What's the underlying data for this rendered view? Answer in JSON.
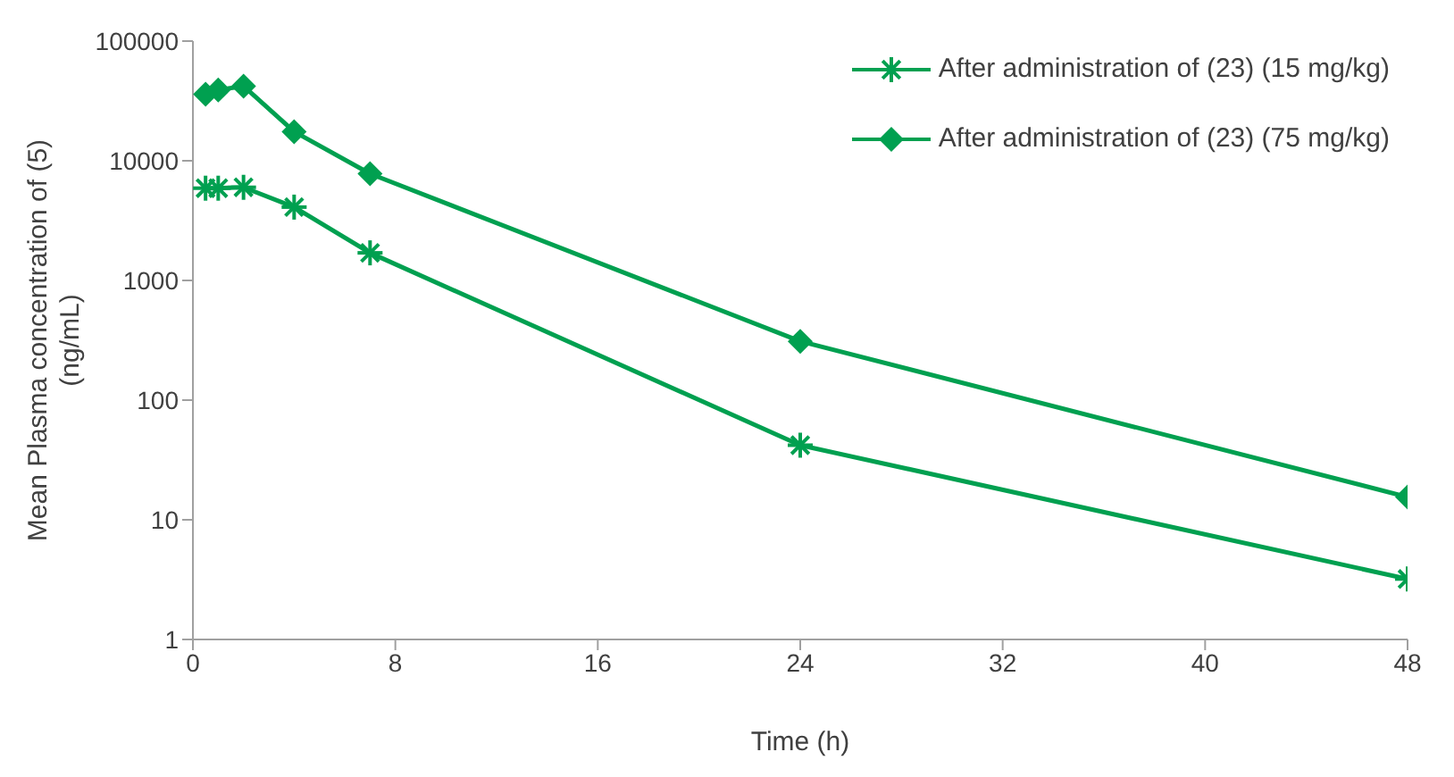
{
  "chart_data": {
    "type": "line",
    "xlabel": "Time (h)",
    "ylabel": "Mean Plasma concentration of (5) (ng/mL)",
    "log": "y",
    "xlim": [
      0,
      48
    ],
    "xticks": [
      0,
      8,
      16,
      24,
      32,
      40,
      48
    ],
    "ylim": [
      1,
      100000
    ],
    "yticks": [
      1,
      10,
      100,
      1000,
      10000,
      100000
    ],
    "grid": false,
    "legend": "top right",
    "x": [
      0.5,
      1,
      2,
      4,
      7,
      24,
      48
    ],
    "series": [
      {
        "name": "After administration of (23) (15 mg/kg)",
        "color": "#00a050",
        "marker": "cross",
        "values": [
          5900,
          5900,
          6000,
          4100,
          1700,
          42,
          3.2
        ]
      },
      {
        "name": "After administration of (23) (75 mg/kg)",
        "color": "#00a050",
        "marker": "diamond",
        "values": [
          36000,
          39000,
          42000,
          17500,
          7800,
          310,
          15.5
        ]
      }
    ]
  }
}
